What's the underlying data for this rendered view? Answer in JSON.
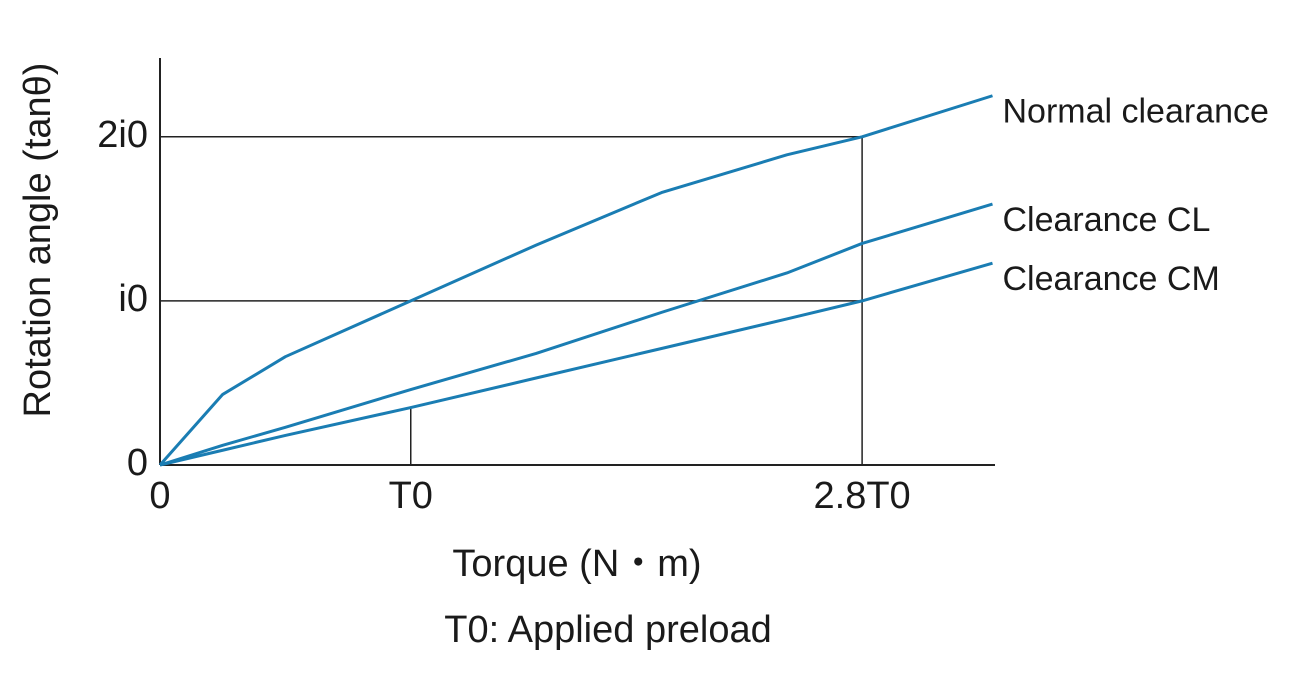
{
  "chart_data": {
    "type": "line",
    "y_label": "Rotation angle (tanθ)",
    "x_label": "Torque (N・m)",
    "note": "T0: Applied preload",
    "xlim": [
      0,
      3.33
    ],
    "ylim": [
      0,
      2.48
    ],
    "xticks": [
      0,
      {
        "value": 1,
        "label": "T0"
      },
      {
        "value": 2.8,
        "label": "2.8T0"
      }
    ],
    "yticks": [
      0,
      {
        "value": 1,
        "label": "i0"
      },
      {
        "value": 2,
        "label": "2i0"
      }
    ],
    "x": [
      0,
      0.25,
      0.5,
      1,
      1.5,
      2,
      2.5,
      2.8,
      3.32
    ],
    "series": [
      {
        "name": "Normal clearance",
        "color": "#1a7db3",
        "values": [
          0,
          0.43,
          0.66,
          1.0,
          1.34,
          1.66,
          1.89,
          2.0,
          2.25
        ]
      },
      {
        "name": "Clearance CL",
        "color": "#1a7db3",
        "values": [
          0,
          0.12,
          0.23,
          0.46,
          0.68,
          0.93,
          1.17,
          1.35,
          1.59
        ]
      },
      {
        "name": "Clearance CM",
        "color": "#1a7db3",
        "values": [
          0,
          0.09,
          0.18,
          0.35,
          0.53,
          0.71,
          0.89,
          1.0,
          1.23
        ]
      }
    ]
  }
}
